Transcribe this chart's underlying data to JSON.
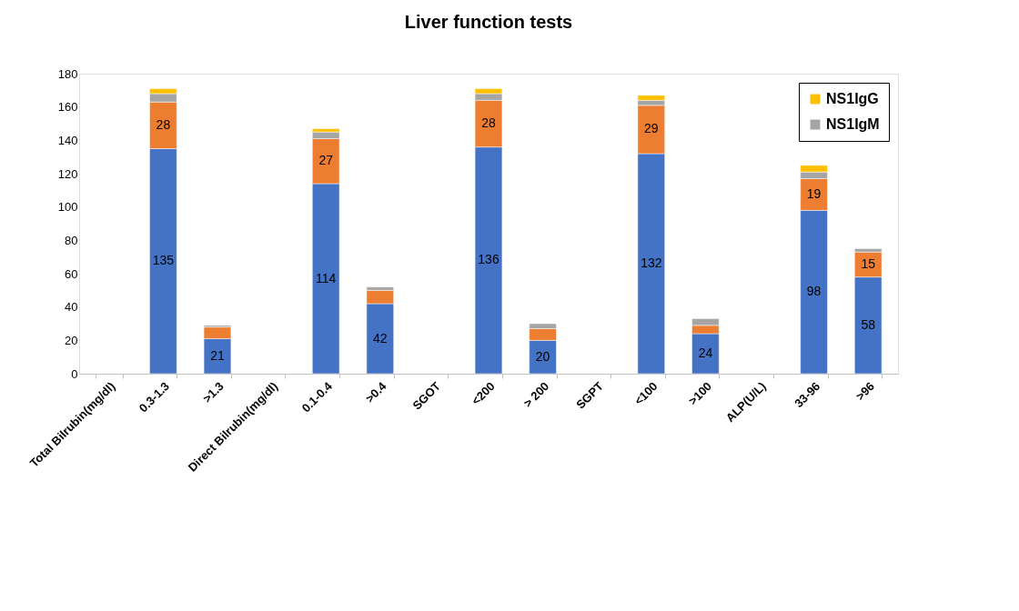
{
  "chart_data": {
    "type": "bar",
    "title": "Liver function tests",
    "stacked": true,
    "categories": [
      "Total Bilrubin(mg/dl)",
      "0.3-1.3",
      ">1.3",
      "Direct Bilrubin(mg/dl)",
      "0.1-0.4",
      ">0.4",
      "SGOT",
      "<200",
      "> 200",
      "SGPT",
      "<100",
      ">100",
      "ALP(U/L)",
      "33-96",
      ">96"
    ],
    "series": [
      {
        "color": "#4472c4",
        "values": [
          null,
          135,
          21,
          null,
          114,
          42,
          null,
          136,
          20,
          null,
          132,
          24,
          null,
          98,
          58
        ],
        "value_labels": [
          null,
          "135",
          "21",
          null,
          "114",
          "42",
          null,
          "136",
          "20",
          null,
          "132",
          "24",
          null,
          "98",
          "58"
        ]
      },
      {
        "color": "#ed7d31",
        "values": [
          null,
          28,
          7,
          null,
          27,
          8,
          null,
          28,
          7,
          null,
          29,
          5,
          null,
          19,
          15
        ],
        "value_labels": [
          null,
          "28",
          null,
          null,
          "27",
          null,
          null,
          "28",
          null,
          null,
          "29",
          null,
          null,
          "19",
          "15"
        ]
      },
      {
        "name": "NS1IgM",
        "color": "#a5a5a5",
        "values": [
          null,
          5,
          1,
          null,
          4,
          2,
          null,
          4,
          3,
          null,
          3,
          4,
          null,
          4,
          2
        ]
      },
      {
        "name": "NS1IgG",
        "color": "#ffc000",
        "values": [
          null,
          3,
          null,
          null,
          2,
          null,
          null,
          3,
          null,
          null,
          3,
          null,
          null,
          4,
          null
        ]
      }
    ],
    "ylim": [
      0,
      180
    ],
    "yticks": [
      0,
      20,
      40,
      60,
      80,
      100,
      120,
      140,
      160,
      180
    ],
    "grid": false,
    "legend": "top right"
  }
}
